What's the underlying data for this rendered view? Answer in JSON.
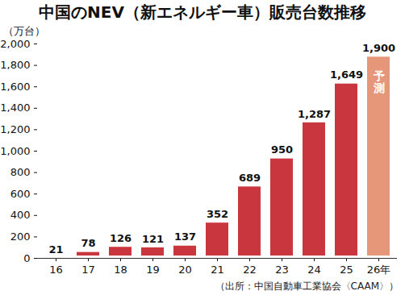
{
  "chart_data": {
    "type": "bar",
    "title": "中国のNEV（新エネルギー車）販売台数推移",
    "ylabel": "（万台）",
    "source": "（出所：中国自動車工業協会〈CAAM〉）",
    "categories": [
      "16",
      "17",
      "18",
      "19",
      "20",
      "21",
      "22",
      "23",
      "24",
      "25",
      "26年"
    ],
    "values": [
      21,
      78,
      126,
      121,
      137,
      352,
      689,
      950,
      1287,
      1649,
      1900
    ],
    "value_labels": [
      "21",
      "78",
      "126",
      "121",
      "137",
      "352",
      "689",
      "950",
      "1,287",
      "1,649",
      "1,900"
    ],
    "colors": [
      "#c9363e",
      "#c9363e",
      "#c9363e",
      "#c9363e",
      "#c9363e",
      "#c9363e",
      "#c9363e",
      "#c9363e",
      "#c9363e",
      "#c9363e",
      "#e6977a"
    ],
    "annotations": [
      {
        "x": "26年",
        "text": "予測"
      }
    ],
    "ylim": [
      0,
      2000
    ],
    "yticks": [
      0,
      200,
      400,
      600,
      800,
      {
        "value": 1000,
        "label": "1,000"
      },
      {
        "value": 1200,
        "label": "1,200"
      },
      {
        "value": 1400,
        "label": "1,400"
      },
      {
        "value": 1600,
        "label": "1,600"
      },
      {
        "value": 1800,
        "label": "1,800"
      },
      {
        "value": 2000,
        "label": "2,000"
      }
    ],
    "grid": false,
    "data_labels": true
  }
}
